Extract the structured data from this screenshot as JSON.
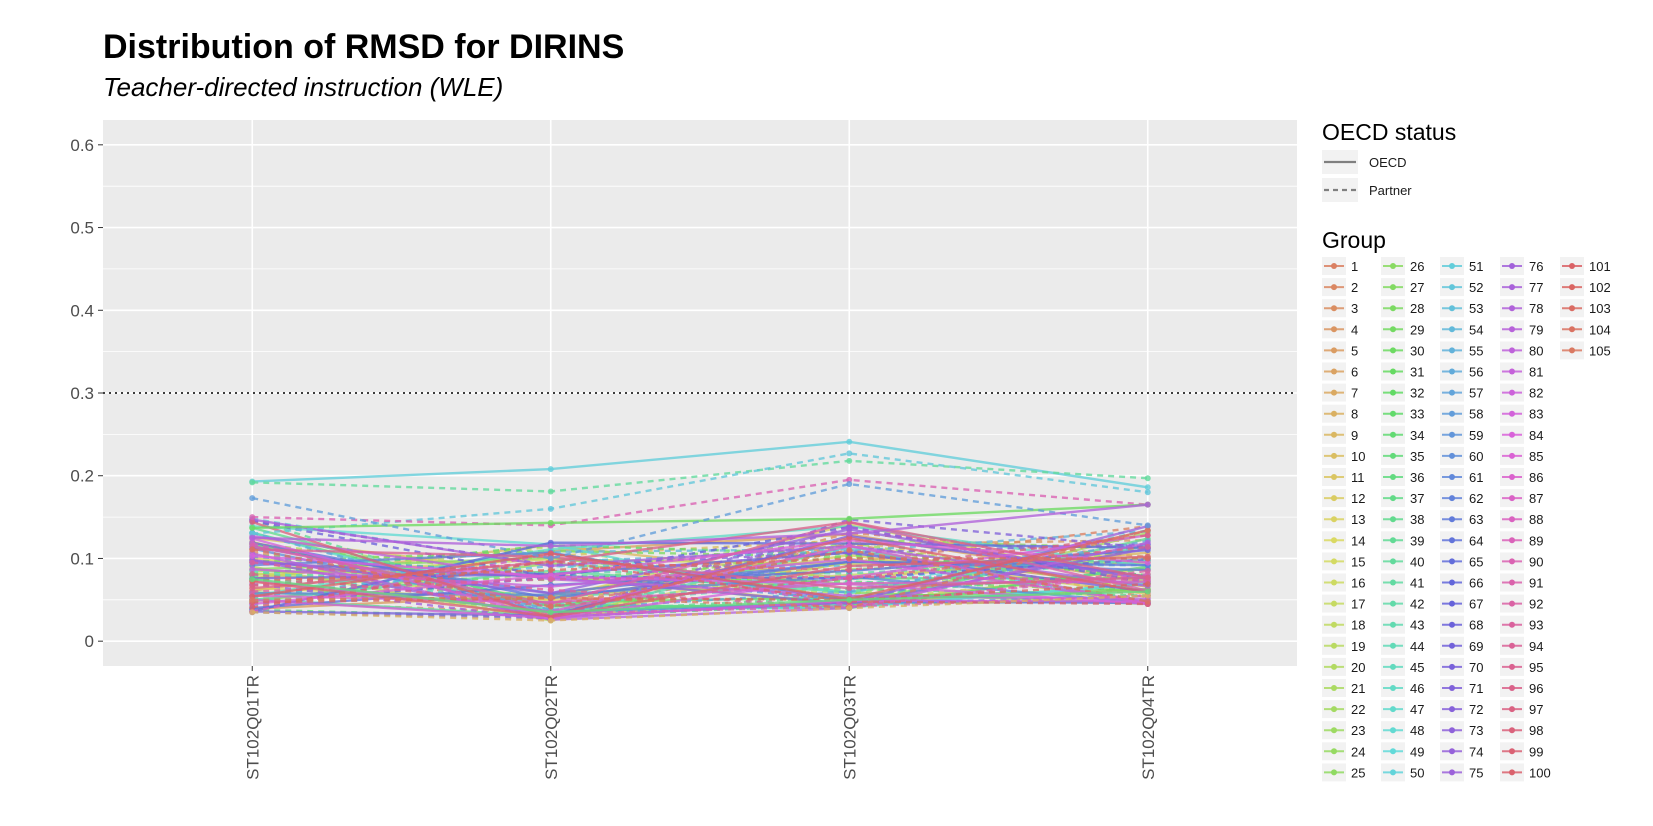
{
  "chart_data": {
    "type": "line",
    "title": "Distribution of RMSD for DIRINS",
    "subtitle": "Teacher-directed instruction (WLE)",
    "xlabel": "",
    "ylabel": "",
    "categories": [
      "ST102Q01TR",
      "ST102Q02TR",
      "ST102Q03TR",
      "ST102Q04TR"
    ],
    "y_ticks": [
      "0",
      "0.1",
      "0.2",
      "0.3",
      "0.4",
      "0.5",
      "0.6"
    ],
    "ylim": [
      -0.03,
      0.63
    ],
    "reference_line": 0.3,
    "grid": true,
    "legend_position": "right",
    "linetype_legend": {
      "title": "OECD status",
      "entries": [
        {
          "label": "OECD",
          "linetype": "solid"
        },
        {
          "label": "Partner",
          "linetype": "dashed"
        }
      ]
    },
    "group_legend": {
      "title": "Group",
      "labels": [
        "1",
        "2",
        "3",
        "4",
        "5",
        "6",
        "7",
        "8",
        "9",
        "10",
        "11",
        "12",
        "13",
        "14",
        "15",
        "16",
        "17",
        "18",
        "19",
        "20",
        "21",
        "22",
        "23",
        "24",
        "25",
        "26",
        "27",
        "28",
        "29",
        "30",
        "31",
        "32",
        "33",
        "34",
        "35",
        "36",
        "37",
        "38",
        "39",
        "40",
        "41",
        "42",
        "43",
        "44",
        "45",
        "46",
        "47",
        "48",
        "49",
        "50",
        "51",
        "52",
        "53",
        "54",
        "55",
        "56",
        "57",
        "58",
        "59",
        "60",
        "61",
        "62",
        "63",
        "64",
        "65",
        "66",
        "67",
        "68",
        "69",
        "70",
        "71",
        "72",
        "73",
        "74",
        "75",
        "76",
        "77",
        "78",
        "79",
        "80",
        "81",
        "82",
        "83",
        "84",
        "85",
        "86",
        "87",
        "88",
        "89",
        "90",
        "91",
        "92",
        "93",
        "94",
        "95",
        "96",
        "97",
        "98",
        "99",
        "100",
        "101",
        "102",
        "103",
        "104",
        "105"
      ]
    },
    "series_count": 105,
    "highlighted_series": [
      {
        "group": "51",
        "status": "OECD",
        "values": [
          0.193,
          0.208,
          0.241,
          0.186
        ]
      },
      {
        "group": "40",
        "status": "Partner",
        "values": [
          0.192,
          0.181,
          0.218,
          0.197
        ]
      },
      {
        "group": "52",
        "status": "Partner",
        "values": [
          0.13,
          0.16,
          0.227,
          0.18
        ]
      },
      {
        "group": "90",
        "status": "Partner",
        "values": [
          0.15,
          0.14,
          0.195,
          0.165
        ]
      },
      {
        "group": "30",
        "status": "OECD",
        "values": [
          0.137,
          0.143,
          0.148,
          0.165
        ]
      },
      {
        "group": "58",
        "status": "Partner",
        "values": [
          0.173,
          0.1,
          0.19,
          0.14
        ]
      },
      {
        "group": "78",
        "status": "OECD",
        "values": [
          0.125,
          0.115,
          0.13,
          0.165
        ]
      },
      {
        "group": "8",
        "status": "Partner",
        "values": [
          0.035,
          0.025,
          0.04,
          0.055
        ]
      },
      {
        "group": "36",
        "status": "OECD",
        "values": [
          0.075,
          0.035,
          0.05,
          0.06
        ]
      }
    ]
  }
}
